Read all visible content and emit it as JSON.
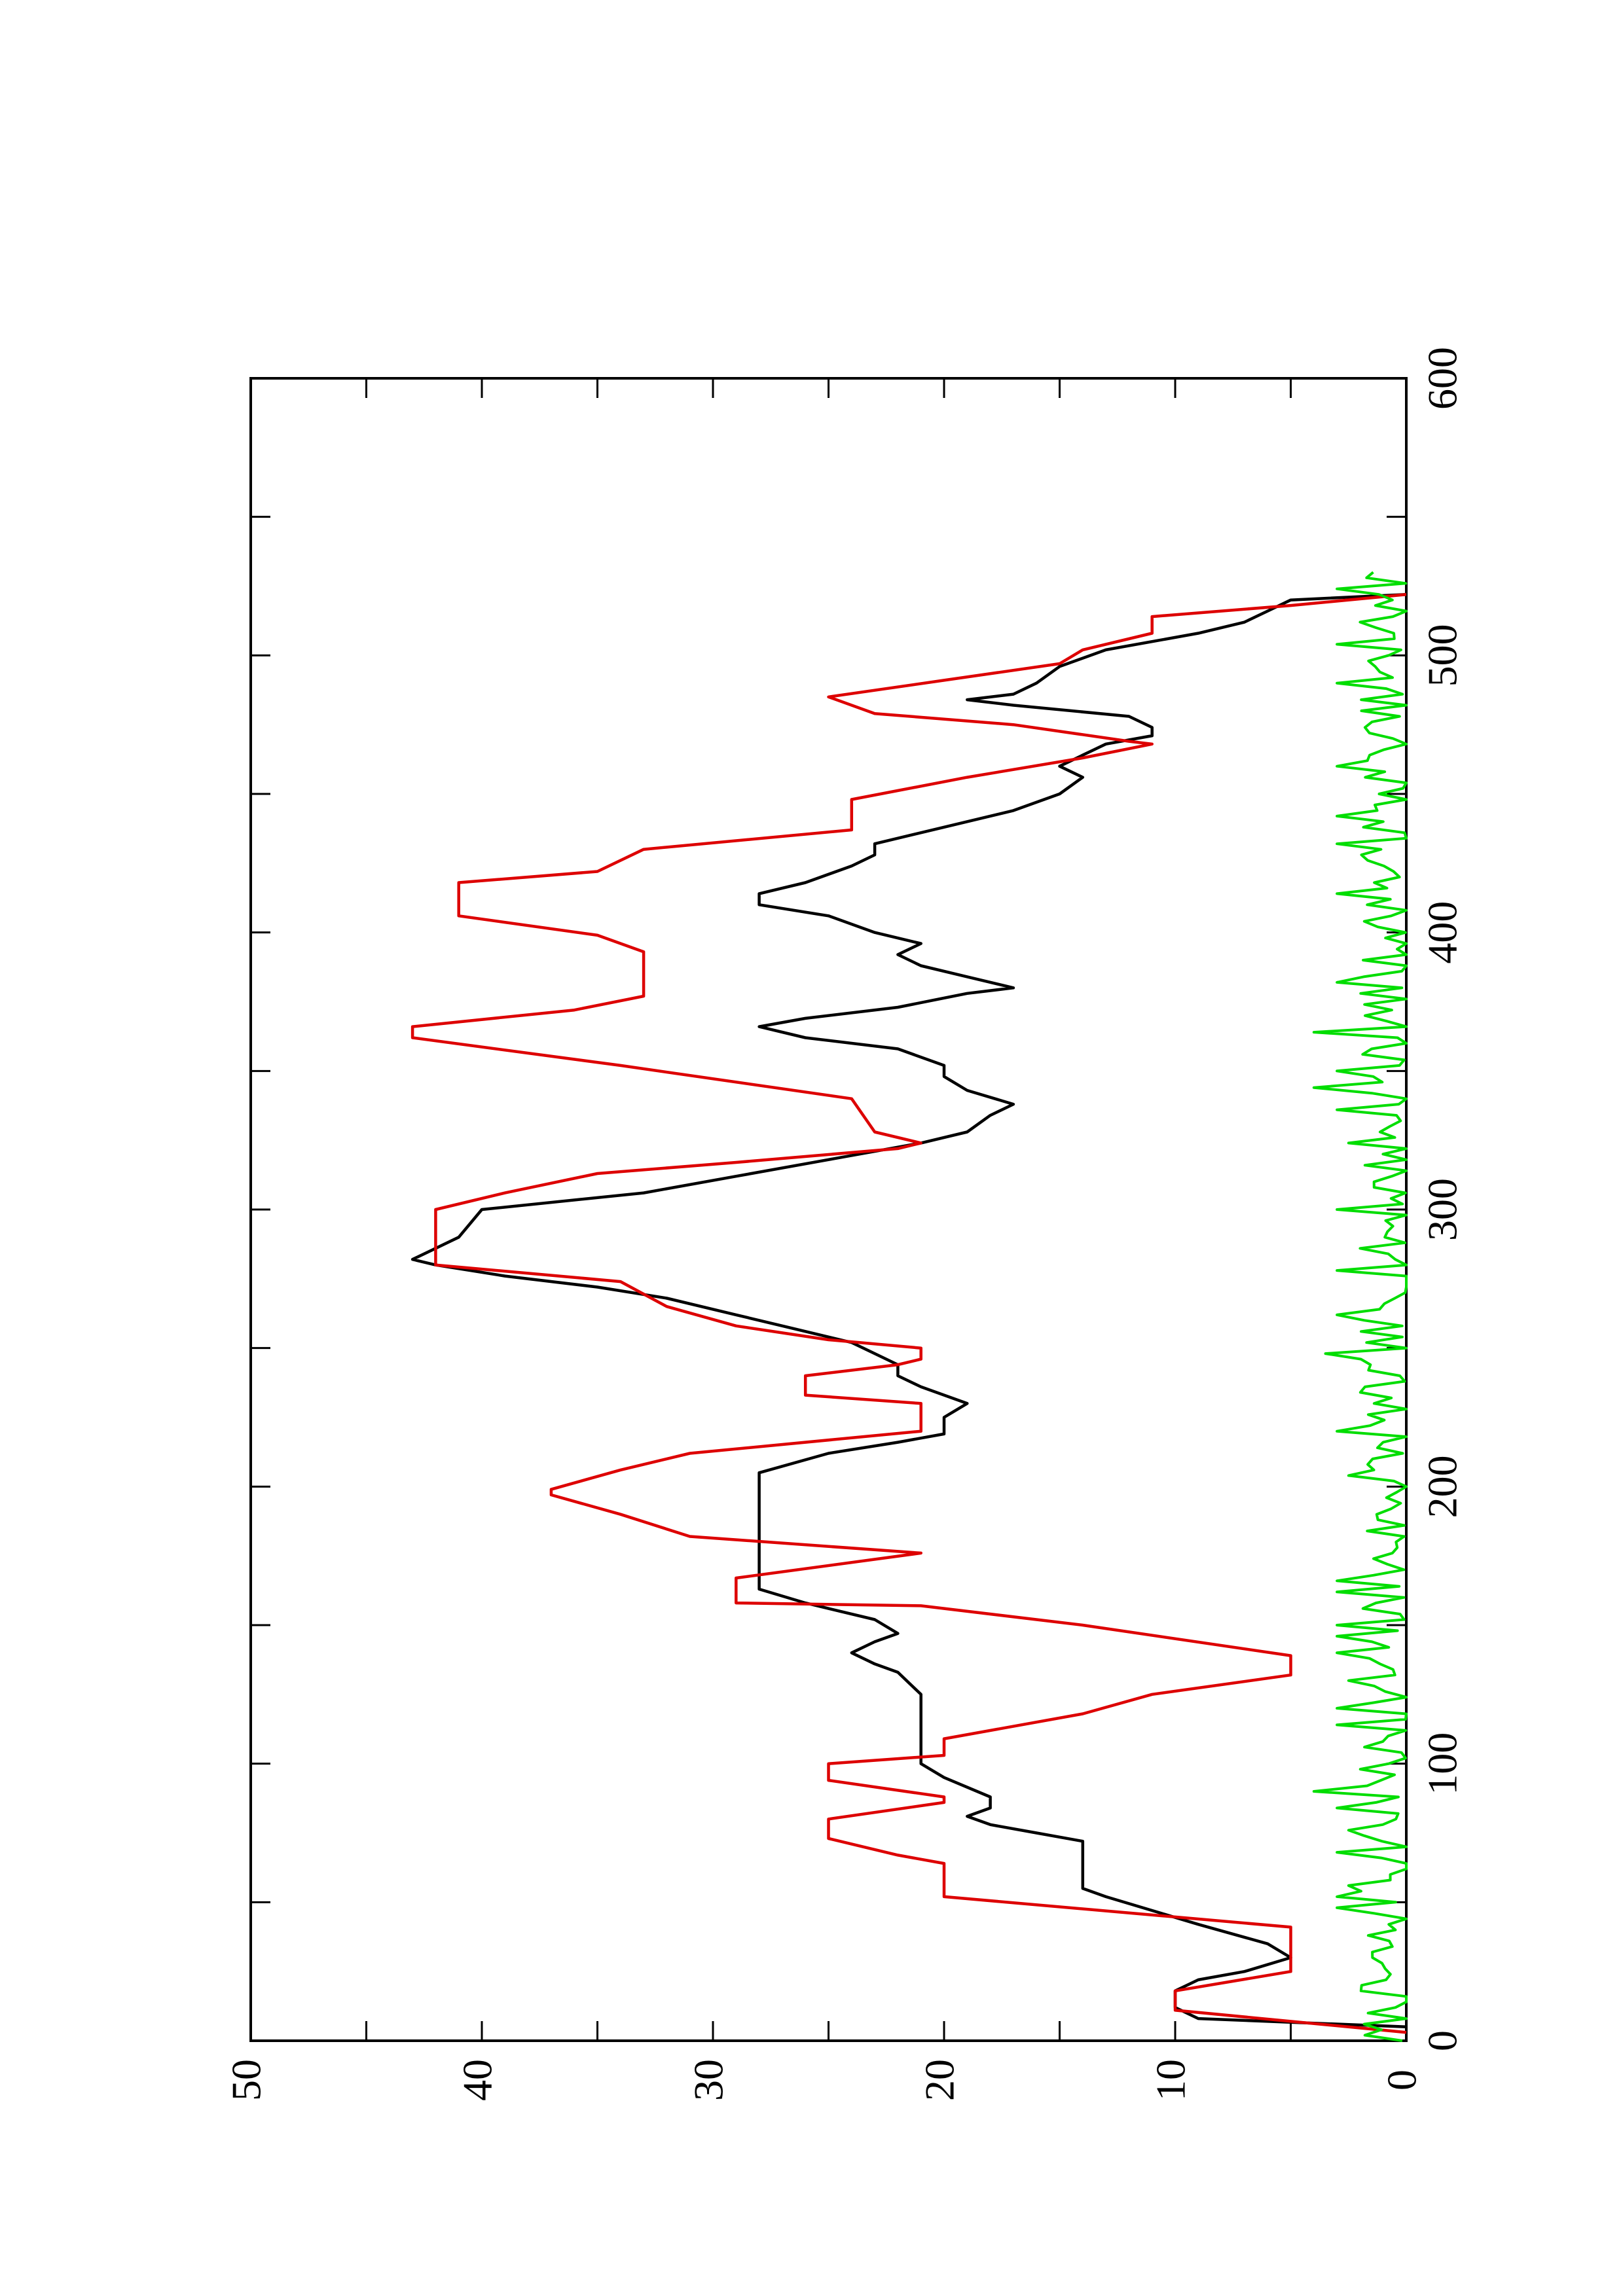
{
  "chart_data": {
    "type": "line",
    "orientation": "rotated-90-ccw",
    "title": "",
    "xlabel": "",
    "ylabel": "",
    "xlim": [
      0,
      600
    ],
    "ylim": [
      0,
      50
    ],
    "x_ticks": [
      "0",
      "100",
      "200",
      "300",
      "400",
      "500",
      "600"
    ],
    "y_ticks": [
      "0",
      "10",
      "20",
      "30",
      "40",
      "50"
    ],
    "grid": false,
    "legend": "none",
    "series": [
      {
        "color": "#000000",
        "style": "smooth",
        "points": [
          [
            5,
            0
          ],
          [
            8,
            9
          ],
          [
            12,
            10
          ],
          [
            18,
            10
          ],
          [
            22,
            9
          ],
          [
            25,
            7
          ],
          [
            30,
            5
          ],
          [
            35,
            6
          ],
          [
            42,
            9
          ],
          [
            47,
            11
          ],
          [
            52,
            13
          ],
          [
            55,
            14
          ],
          [
            65,
            14
          ],
          [
            72,
            14
          ],
          [
            75,
            16
          ],
          [
            78,
            18
          ],
          [
            81,
            19
          ],
          [
            84,
            18
          ],
          [
            88,
            18
          ],
          [
            95,
            20
          ],
          [
            100,
            21
          ],
          [
            103,
            21
          ],
          [
            106,
            21
          ],
          [
            112,
            21
          ],
          [
            125,
            21
          ],
          [
            133,
            22
          ],
          [
            136,
            23
          ],
          [
            140,
            24
          ],
          [
            144,
            23
          ],
          [
            147,
            22
          ],
          [
            152,
            23
          ],
          [
            158,
            26
          ],
          [
            163,
            28
          ],
          [
            168,
            28
          ],
          [
            172,
            28
          ],
          [
            176,
            28
          ],
          [
            182,
            28
          ],
          [
            195,
            28
          ],
          [
            205,
            28
          ],
          [
            212,
            25
          ],
          [
            216,
            22
          ],
          [
            219,
            20
          ],
          [
            222,
            20
          ],
          [
            225,
            20
          ],
          [
            230,
            19
          ],
          [
            236,
            21
          ],
          [
            240,
            22
          ],
          [
            244,
            22
          ],
          [
            248,
            23
          ],
          [
            252,
            24
          ],
          [
            258,
            27
          ],
          [
            262,
            29
          ],
          [
            268,
            32
          ],
          [
            272,
            35
          ],
          [
            276,
            39
          ],
          [
            280,
            42
          ],
          [
            282,
            43
          ],
          [
            286,
            42
          ],
          [
            290,
            41
          ],
          [
            300,
            40
          ],
          [
            306,
            33
          ],
          [
            312,
            29
          ],
          [
            318,
            25
          ],
          [
            324,
            21
          ],
          [
            328,
            19
          ],
          [
            334,
            18
          ],
          [
            338,
            17
          ],
          [
            343,
            19
          ],
          [
            348,
            20
          ],
          [
            352,
            20
          ],
          [
            358,
            22
          ],
          [
            362,
            26
          ],
          [
            366,
            28
          ],
          [
            369,
            26
          ],
          [
            373,
            22
          ],
          [
            378,
            19
          ],
          [
            380,
            17
          ],
          [
            384,
            19
          ],
          [
            388,
            21
          ],
          [
            392,
            22
          ],
          [
            396,
            21
          ],
          [
            400,
            23
          ],
          [
            406,
            25
          ],
          [
            410,
            28
          ],
          [
            414,
            28
          ],
          [
            418,
            26
          ],
          [
            424,
            24
          ],
          [
            428,
            23
          ],
          [
            432,
            23
          ],
          [
            438,
            20
          ],
          [
            444,
            17
          ],
          [
            450,
            15
          ],
          [
            456,
            14
          ],
          [
            460,
            15
          ],
          [
            464,
            14
          ],
          [
            468,
            13
          ],
          [
            471,
            11
          ],
          [
            474,
            11
          ],
          [
            478,
            12
          ],
          [
            482,
            17
          ],
          [
            484,
            19
          ],
          [
            486,
            17
          ],
          [
            490,
            16
          ],
          [
            496,
            15
          ],
          [
            502,
            13
          ],
          [
            508,
            9
          ],
          [
            512,
            7
          ],
          [
            516,
            6
          ],
          [
            520,
            5
          ],
          [
            522,
            0
          ]
        ]
      },
      {
        "color": "#dd0000",
        "style": "step",
        "points": [
          [
            3,
            0
          ],
          [
            11,
            10
          ],
          [
            18,
            10
          ],
          [
            25,
            5
          ],
          [
            31,
            5
          ],
          [
            41,
            5
          ],
          [
            52,
            20
          ],
          [
            64,
            20
          ],
          [
            67,
            22
          ],
          [
            73,
            25
          ],
          [
            80,
            25
          ],
          [
            86,
            20
          ],
          [
            88,
            20
          ],
          [
            94,
            25
          ],
          [
            100,
            25
          ],
          [
            103,
            20
          ],
          [
            109,
            20
          ],
          [
            118,
            14
          ],
          [
            125,
            11
          ],
          [
            132,
            5
          ],
          [
            139,
            5
          ],
          [
            150,
            14
          ],
          [
            157,
            21
          ],
          [
            158,
            29
          ],
          [
            167,
            29
          ],
          [
            176,
            21
          ],
          [
            182,
            31
          ],
          [
            190,
            34
          ],
          [
            197,
            37
          ],
          [
            199,
            37
          ],
          [
            206,
            34
          ],
          [
            212,
            31
          ],
          [
            220,
            21
          ],
          [
            230,
            21
          ],
          [
            233,
            26
          ],
          [
            240,
            26
          ],
          [
            244,
            22
          ],
          [
            246,
            21
          ],
          [
            250,
            21
          ],
          [
            253,
            25
          ],
          [
            258,
            29
          ],
          [
            265,
            32
          ],
          [
            274,
            34
          ],
          [
            280,
            42
          ],
          [
            282,
            42
          ],
          [
            300,
            42
          ],
          [
            306,
            39
          ],
          [
            313,
            35
          ],
          [
            317,
            29
          ],
          [
            322,
            22
          ],
          [
            324,
            21
          ],
          [
            328,
            23
          ],
          [
            340,
            24
          ],
          [
            352,
            34
          ],
          [
            362,
            43
          ],
          [
            366,
            43
          ],
          [
            372,
            36
          ],
          [
            377,
            33
          ],
          [
            393,
            33
          ],
          [
            399,
            35
          ],
          [
            406,
            41
          ],
          [
            412,
            41
          ],
          [
            418,
            41
          ],
          [
            422,
            35
          ],
          [
            430,
            33
          ],
          [
            437,
            24
          ],
          [
            444,
            24
          ],
          [
            448,
            24
          ],
          [
            456,
            19
          ],
          [
            463,
            14
          ],
          [
            468,
            11
          ],
          [
            469,
            12
          ],
          [
            475,
            17
          ],
          [
            479,
            23
          ],
          [
            485,
            25
          ],
          [
            491,
            20
          ],
          [
            497,
            15
          ],
          [
            502,
            14
          ],
          [
            508,
            11
          ],
          [
            514,
            11
          ],
          [
            518,
            5
          ],
          [
            522,
            0
          ]
        ]
      },
      {
        "color": "#00dd00",
        "style": "noisy",
        "seed": 7,
        "x_range": [
          0,
          530
        ],
        "step": 2,
        "baseline": 0.8,
        "amplitude": 1.2,
        "spikes": [
          [
            48,
            3
          ],
          [
            52,
            3
          ],
          [
            57,
            2.5
          ],
          [
            68,
            3
          ],
          [
            76,
            2.5
          ],
          [
            84,
            3
          ],
          [
            91,
            4
          ],
          [
            114,
            3
          ],
          [
            120,
            3
          ],
          [
            130,
            2.5
          ],
          [
            140,
            3
          ],
          [
            147,
            3
          ],
          [
            150,
            3
          ],
          [
            163,
            3
          ],
          [
            166,
            3
          ],
          [
            204,
            2.5
          ],
          [
            220,
            3
          ],
          [
            248,
            3.5
          ],
          [
            262,
            3
          ],
          [
            278,
            3
          ],
          [
            286,
            2
          ],
          [
            300,
            3
          ],
          [
            324,
            2.5
          ],
          [
            337,
            3
          ],
          [
            344,
            4
          ],
          [
            351,
            3
          ],
          [
            365,
            4
          ],
          [
            382,
            3
          ],
          [
            415,
            3
          ],
          [
            432,
            3
          ],
          [
            442,
            3
          ],
          [
            461,
            3
          ],
          [
            490,
            3
          ],
          [
            504,
            3
          ],
          [
            512,
            2
          ],
          [
            524,
            3
          ]
        ]
      }
    ]
  }
}
